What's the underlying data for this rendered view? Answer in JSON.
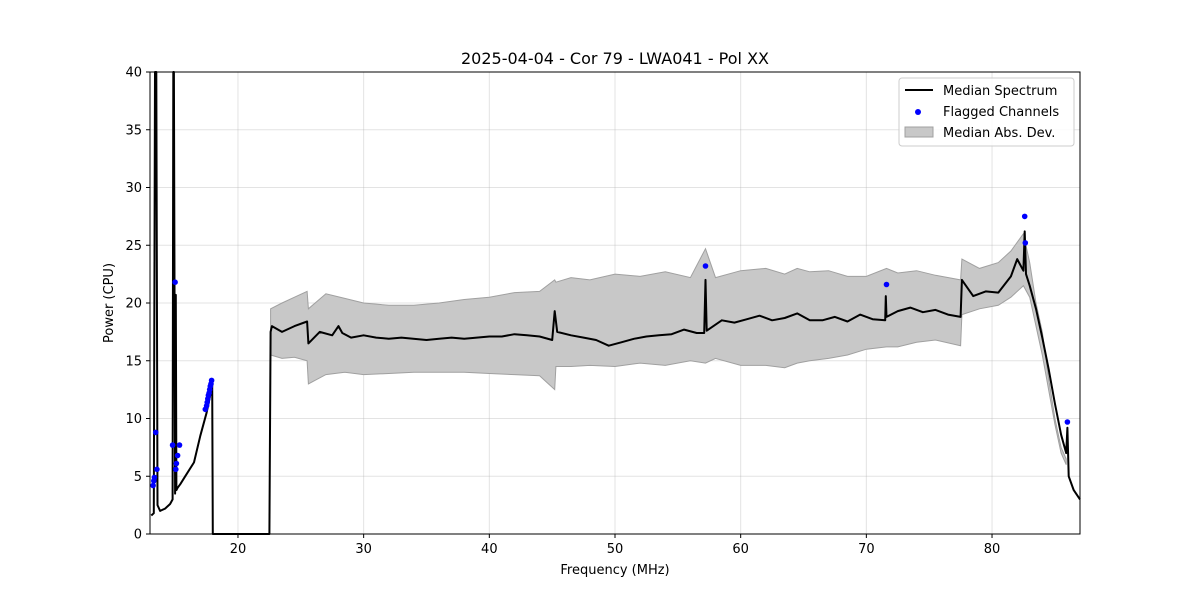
{
  "chart_data": {
    "type": "line",
    "title": "2025-04-04 - Cor 79 - LWA041 - Pol XX",
    "xlabel": "Frequency (MHz)",
    "ylabel": "Power (CPU)",
    "xlim": [
      13,
      87
    ],
    "ylim": [
      0,
      40
    ],
    "xticks": [
      20,
      30,
      40,
      50,
      60,
      70,
      80
    ],
    "yticks": [
      0,
      5,
      10,
      15,
      20,
      25,
      30,
      35,
      40
    ],
    "grid": true,
    "legend_position": "top-right",
    "colors": {
      "median": "#000000",
      "flagged": "#0000ff",
      "mad_fill": "#c8c8c8",
      "mad_edge": "#a0a0a0"
    },
    "series": [
      {
        "name": "Median Spectrum",
        "x": [
          13.1,
          13.3,
          13.4,
          13.5,
          13.6,
          13.8,
          14.2,
          14.6,
          14.8,
          14.85,
          14.9,
          15.0,
          15.05,
          15.1,
          15.2,
          15.4,
          15.8,
          16.5,
          17.0,
          17.5,
          17.9,
          17.95,
          18.0,
          22.5,
          22.6,
          22.7,
          23.5,
          24.5,
          25.5,
          25.6,
          26.5,
          27.5,
          28.0,
          28.3,
          29.0,
          30.0,
          31.0,
          32.0,
          33.0,
          35.0,
          36.0,
          37.0,
          38.0,
          39.0,
          40.0,
          41.0,
          42.0,
          43.0,
          44.0,
          45.0,
          45.2,
          45.4,
          46.5,
          47.5,
          48.5,
          49.5,
          50.5,
          51.5,
          52.5,
          53.5,
          54.5,
          55.5,
          56.5,
          57.1,
          57.2,
          57.3,
          58.5,
          59.5,
          60.5,
          61.5,
          62.5,
          63.5,
          64.5,
          65.5,
          66.5,
          67.5,
          68.5,
          69.5,
          70.5,
          71.5,
          71.55,
          71.6,
          72.5,
          73.5,
          74.5,
          75.5,
          76.5,
          77.5,
          77.6,
          78.5,
          79.5,
          80.5,
          81.5,
          82.0,
          82.5,
          82.6,
          82.7,
          83.0,
          83.5,
          84.0,
          84.5,
          85.0,
          85.5,
          85.9,
          86.0,
          86.1,
          86.5,
          87.0
        ],
        "y": [
          1.6,
          1.8,
          40,
          40,
          2.5,
          2.0,
          2.2,
          2.6,
          3.0,
          40,
          40,
          3.5,
          20.7,
          3.8,
          4.0,
          4.3,
          5.0,
          6.2,
          8.5,
          10.5,
          12.6,
          12.9,
          0,
          0,
          17.5,
          18.0,
          17.5,
          18.0,
          18.4,
          16.5,
          17.5,
          17.2,
          18.0,
          17.4,
          17.0,
          17.2,
          17.0,
          16.9,
          17.0,
          16.8,
          16.9,
          17.0,
          16.9,
          17.0,
          17.1,
          17.1,
          17.3,
          17.2,
          17.1,
          16.8,
          19.3,
          17.5,
          17.2,
          17.0,
          16.8,
          16.3,
          16.6,
          16.9,
          17.1,
          17.2,
          17.3,
          17.7,
          17.4,
          17.4,
          22.0,
          17.6,
          18.5,
          18.3,
          18.6,
          18.9,
          18.5,
          18.7,
          19.1,
          18.5,
          18.5,
          18.8,
          18.4,
          19.0,
          18.6,
          18.5,
          20.6,
          18.8,
          19.3,
          19.6,
          19.2,
          19.4,
          19.0,
          18.8,
          22.0,
          20.6,
          21.0,
          20.9,
          22.3,
          23.8,
          22.8,
          26.2,
          22.5,
          21.5,
          19.5,
          17.0,
          14.3,
          11.3,
          8.6,
          7.0,
          9.2,
          5.0,
          3.8,
          3.0
        ]
      },
      {
        "name": "Flagged Channels",
        "x": [
          13.25,
          13.3,
          13.35,
          13.45,
          13.55,
          14.8,
          15.0,
          15.05,
          15.1,
          15.2,
          15.35,
          17.4,
          17.5,
          17.55,
          17.6,
          17.65,
          17.7,
          17.75,
          17.8,
          17.85,
          17.9,
          57.2,
          71.6,
          82.6,
          82.65,
          86.0
        ],
        "y": [
          4.2,
          4.6,
          4.9,
          8.8,
          5.6,
          7.7,
          21.8,
          5.6,
          6.1,
          6.8,
          7.7,
          10.8,
          11.1,
          11.4,
          11.7,
          12.0,
          12.2,
          12.5,
          12.8,
          13.0,
          13.3,
          23.2,
          21.6,
          27.5,
          25.2,
          9.7
        ]
      },
      {
        "name": "Median Abs. Dev.",
        "x": [
          22.6,
          23.5,
          24.5,
          25.5,
          25.6,
          27.0,
          28.5,
          30.0,
          32.0,
          34.0,
          36.0,
          38.0,
          40.0,
          42.0,
          44.0,
          45.2,
          45.3,
          46.5,
          48.0,
          50.0,
          52.0,
          54.0,
          56.0,
          57.2,
          58.0,
          60.0,
          62.0,
          63.5,
          64.5,
          65.5,
          67.0,
          68.5,
          70.0,
          71.6,
          72.5,
          74.0,
          75.5,
          77.5,
          77.6,
          79.0,
          80.5,
          81.5,
          82.5,
          83.0,
          83.5,
          84.0,
          84.5,
          85.0,
          85.5,
          85.9
        ],
        "lower": [
          15.5,
          15.2,
          15.3,
          15.0,
          13.0,
          13.8,
          14.0,
          13.8,
          13.9,
          14.0,
          14.0,
          14.0,
          13.9,
          13.8,
          13.7,
          12.5,
          14.5,
          14.5,
          14.6,
          14.5,
          14.8,
          14.6,
          15.0,
          14.8,
          15.2,
          14.6,
          14.6,
          14.4,
          14.8,
          15.0,
          15.2,
          15.5,
          16.0,
          16.2,
          16.2,
          16.6,
          16.8,
          16.3,
          19.0,
          19.5,
          19.8,
          20.5,
          21.5,
          20.5,
          18.0,
          15.5,
          12.5,
          9.5,
          7.0,
          6.0
        ],
        "upper": [
          19.5,
          20.0,
          20.5,
          21.0,
          19.5,
          20.8,
          20.4,
          20.0,
          19.8,
          19.8,
          20.0,
          20.3,
          20.5,
          20.9,
          21.0,
          22.0,
          21.8,
          22.2,
          22.0,
          22.5,
          22.3,
          22.7,
          22.2,
          24.7,
          22.2,
          22.8,
          23.0,
          22.5,
          23.0,
          22.7,
          22.8,
          22.3,
          22.3,
          23.0,
          22.6,
          22.8,
          22.4,
          22.0,
          23.8,
          23.0,
          23.5,
          24.5,
          26.0,
          23.5,
          20.0,
          17.5,
          13.5,
          10.0,
          7.5,
          6.5
        ]
      }
    ]
  }
}
